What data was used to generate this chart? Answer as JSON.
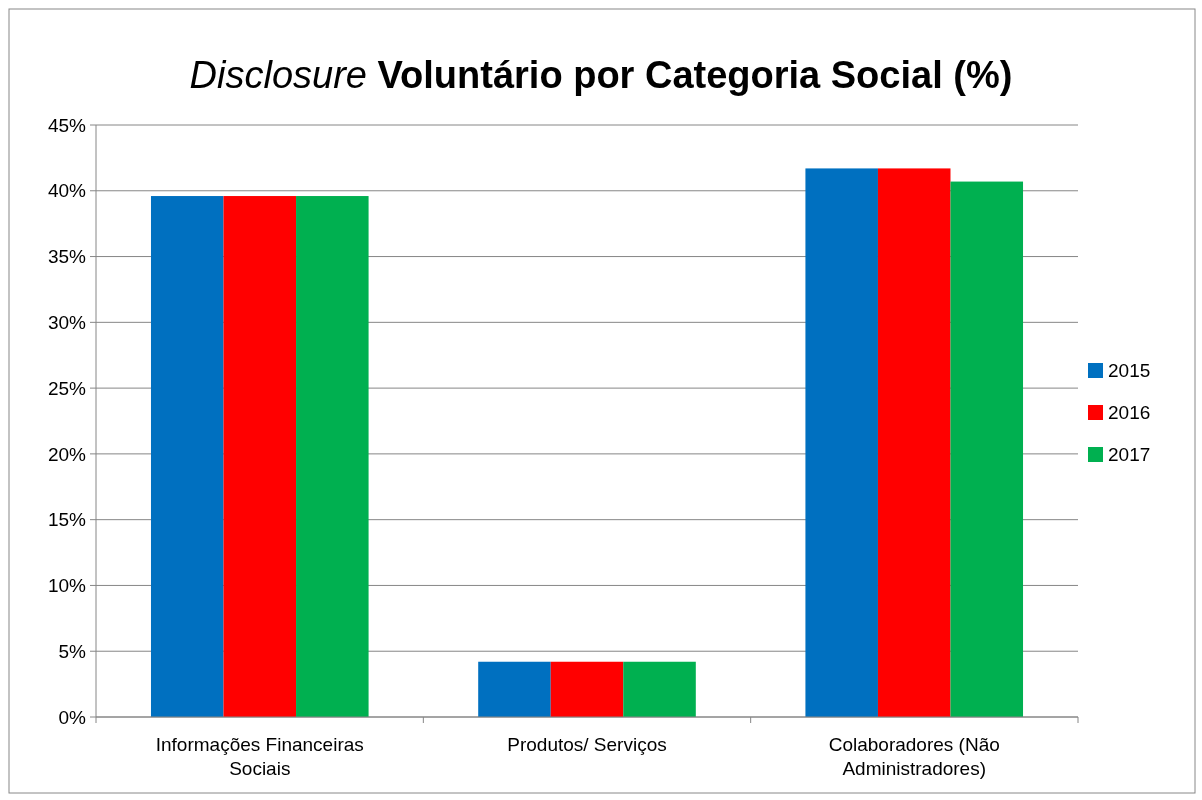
{
  "chart_data": {
    "type": "bar",
    "title": "Disclosure Voluntário por Categoria Social (%)",
    "categories": [
      "Informações Financeiras Sociais",
      "Produtos/ Serviços",
      "Colaboradores (Não Administradores)"
    ],
    "series": [
      {
        "name": "2015",
        "color": "#0070c0",
        "values": [
          39.6,
          4.2,
          41.7
        ]
      },
      {
        "name": "2016",
        "color": "#ff0000",
        "values": [
          39.6,
          4.2,
          41.7
        ]
      },
      {
        "name": "2017",
        "color": "#00b050",
        "values": [
          39.6,
          4.2,
          40.7
        ]
      }
    ],
    "ylim": [
      0,
      45
    ],
    "yticks": [
      {
        "value": 0,
        "label": "0%"
      },
      {
        "value": 5,
        "label": "5%"
      },
      {
        "value": 10,
        "label": "10%"
      },
      {
        "value": 15,
        "label": "15%"
      },
      {
        "value": 20,
        "label": "20%"
      },
      {
        "value": 25,
        "label": "25%"
      },
      {
        "value": 30,
        "label": "30%"
      },
      {
        "value": 35,
        "label": "35%"
      },
      {
        "value": 40,
        "label": "40%"
      },
      {
        "value": 45,
        "label": "45%"
      }
    ],
    "grid": "y",
    "legend": "right"
  }
}
